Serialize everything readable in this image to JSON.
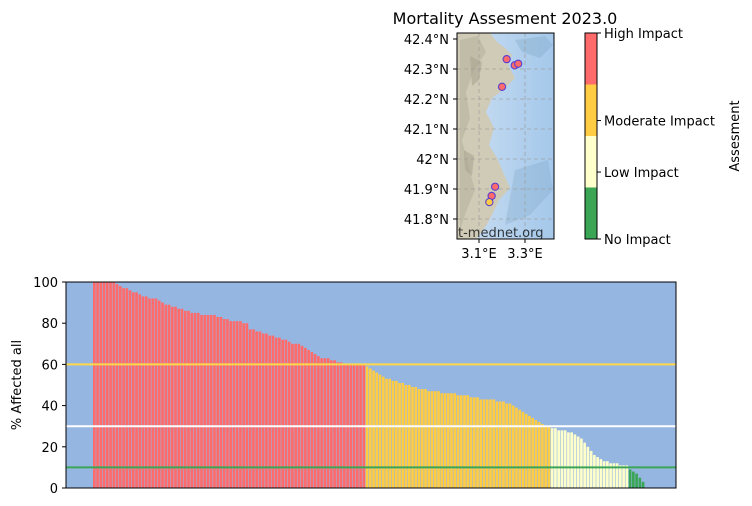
{
  "title": "Mortality Assesment 2023.0",
  "map": {
    "lat_ticks": [
      "42.4°N",
      "42.3°N",
      "42.2°N",
      "42.1°N",
      "42°N",
      "41.9°N",
      "41.8°N"
    ],
    "lon_ticks": [
      "3.1°E",
      "3.3°E"
    ],
    "watermark": "t-mednet.org",
    "lat_range": [
      41.75,
      42.42
    ],
    "lon_range": [
      3.0,
      3.42
    ],
    "sites": [
      {
        "lon": 3.215,
        "lat": 42.335,
        "color": "#ff6b6b"
      },
      {
        "lon": 3.25,
        "lat": 42.315,
        "color": "#ff6b6b"
      },
      {
        "lon": 3.265,
        "lat": 42.32,
        "color": "#ff6b6b"
      },
      {
        "lon": 3.195,
        "lat": 42.245,
        "color": "#ff6b6b"
      },
      {
        "lon": 3.165,
        "lat": 41.92,
        "color": "#ff6b6b"
      },
      {
        "lon": 3.15,
        "lat": 41.89,
        "color": "#ff6b6b"
      },
      {
        "lon": 3.14,
        "lat": 41.87,
        "color": "#ffcc44"
      }
    ]
  },
  "colorbar": {
    "label": "Assesment",
    "levels": [
      {
        "label": "High Impact",
        "color": "#ff6b6b"
      },
      {
        "label": "Moderate Impact",
        "color": "#ffcc44"
      },
      {
        "label": "Low Impact",
        "color": "#ffffcc"
      },
      {
        "label": "No Impact",
        "color": "#3aa655"
      }
    ]
  },
  "chart_data": {
    "type": "bar",
    "ylabel": "% Affected all",
    "ylim": [
      0,
      100
    ],
    "y_ticks": [
      0,
      20,
      40,
      60,
      80,
      100
    ],
    "background": "#96b6e2",
    "thresholds": [
      {
        "value": 60,
        "color": "#ffd84a"
      },
      {
        "value": 30,
        "color": "#ffffff"
      },
      {
        "value": 10,
        "color": "#3aa655"
      }
    ],
    "values": [
      100,
      100,
      100,
      100,
      100,
      100,
      100,
      99,
      98,
      97,
      97,
      96,
      95,
      95,
      94,
      93,
      93,
      92,
      92,
      92,
      91,
      90,
      89,
      89,
      88,
      88,
      87,
      87,
      86,
      86,
      85,
      85,
      85,
      84,
      84,
      84,
      84,
      84,
      83,
      83,
      82,
      82,
      81,
      81,
      81,
      81,
      80,
      80,
      77,
      77,
      76,
      76,
      75,
      75,
      74,
      74,
      73,
      73,
      72,
      72,
      71,
      70,
      70,
      70,
      69,
      68,
      67,
      66,
      65,
      64,
      63,
      63,
      63,
      62,
      62,
      61,
      61,
      60,
      60,
      60,
      60,
      60,
      60,
      60,
      59,
      58,
      57,
      56,
      55,
      54,
      53,
      53,
      52,
      52,
      51,
      51,
      50,
      50,
      49,
      49,
      48,
      48,
      48,
      47,
      47,
      47,
      47,
      46,
      46,
      46,
      46,
      46,
      45,
      45,
      45,
      45,
      44,
      44,
      44,
      43,
      43,
      43,
      43,
      43,
      42,
      42,
      42,
      41,
      41,
      40,
      39,
      38,
      37,
      36,
      35,
      34,
      33,
      32,
      31,
      30,
      30,
      29,
      29,
      28,
      28,
      28,
      27,
      27,
      26,
      25,
      24,
      22,
      20,
      18,
      16,
      15,
      14,
      13,
      13,
      12,
      12,
      12,
      11,
      11,
      11,
      9,
      8,
      7,
      5,
      3
    ]
  }
}
